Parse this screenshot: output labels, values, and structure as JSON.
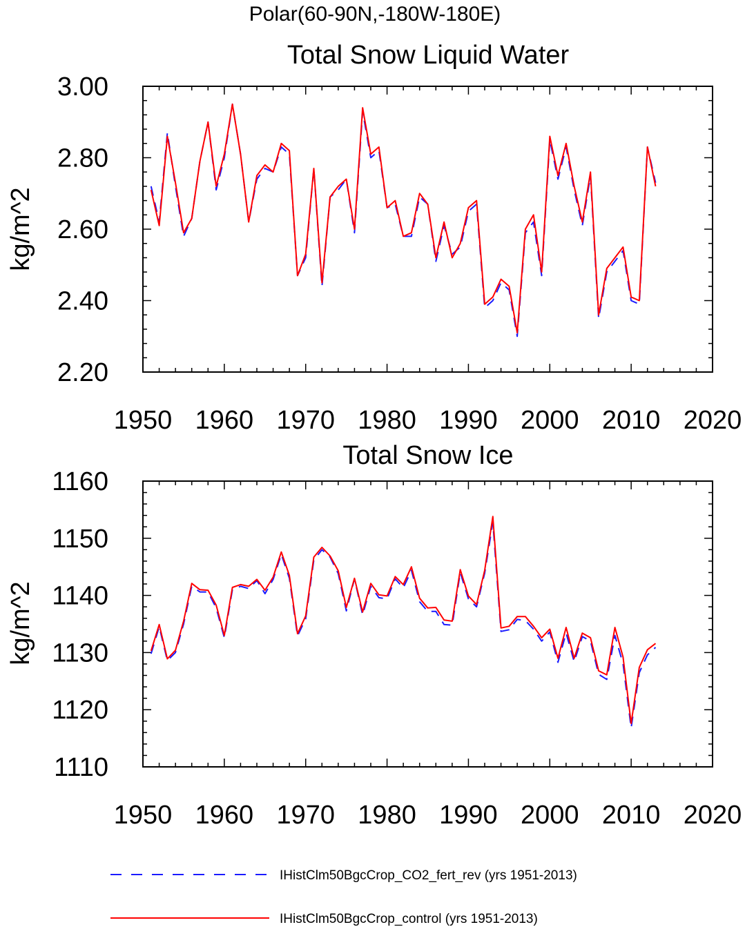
{
  "suptitle": "Polar(60-90N,-180W-180E)",
  "colors": {
    "run1": "#1a1aff",
    "run2": "#ff0000"
  },
  "legend": [
    {
      "label": "IHistClm50BgcCrop_CO2_fert_rev (yrs 1951-2013)",
      "color": "#1a1aff",
      "style": "dashed"
    },
    {
      "label": "IHistClm50BgcCrop_control (yrs 1951-2013)",
      "color": "#ff0000",
      "style": "solid"
    }
  ],
  "chart_data": [
    {
      "type": "line",
      "title": "Total Snow Liquid Water",
      "ylabel": "kg/m^2",
      "xlabel": "",
      "xlim": [
        1950,
        2020
      ],
      "ylim": [
        2.2,
        3.0
      ],
      "xticks": [
        1950,
        1960,
        1970,
        1980,
        1990,
        2000,
        2010,
        2020
      ],
      "yticks": [
        "2.20",
        "2.40",
        "2.60",
        "2.80",
        "3.00"
      ],
      "ytick_values": [
        2.2,
        2.4,
        2.6,
        2.8,
        3.0
      ],
      "x_start": 1951,
      "series": [
        {
          "name": "IHistClm50BgcCrop_CO2_fert_rev",
          "color": "#1a1aff",
          "style": "dashed",
          "values": [
            2.72,
            2.62,
            2.87,
            2.72,
            2.58,
            2.63,
            2.79,
            2.9,
            2.71,
            2.8,
            2.95,
            2.81,
            2.62,
            2.74,
            2.77,
            2.76,
            2.83,
            2.81,
            2.47,
            2.52,
            2.77,
            2.44,
            2.69,
            2.71,
            2.74,
            2.59,
            2.93,
            2.8,
            2.82,
            2.66,
            2.67,
            2.58,
            2.58,
            2.69,
            2.67,
            2.51,
            2.61,
            2.53,
            2.55,
            2.65,
            2.67,
            2.38,
            2.4,
            2.45,
            2.43,
            2.3,
            2.59,
            2.62,
            2.47,
            2.85,
            2.74,
            2.83,
            2.71,
            2.61,
            2.75,
            2.35,
            2.48,
            2.51,
            2.54,
            2.4,
            2.39,
            2.83,
            2.73
          ]
        },
        {
          "name": "IHistClm50BgcCrop_control",
          "color": "#ff0000",
          "style": "solid",
          "values": [
            2.71,
            2.61,
            2.86,
            2.73,
            2.59,
            2.63,
            2.79,
            2.9,
            2.72,
            2.81,
            2.95,
            2.81,
            2.62,
            2.75,
            2.78,
            2.76,
            2.84,
            2.82,
            2.47,
            2.53,
            2.77,
            2.45,
            2.69,
            2.72,
            2.74,
            2.6,
            2.94,
            2.81,
            2.83,
            2.66,
            2.68,
            2.58,
            2.59,
            2.7,
            2.67,
            2.52,
            2.62,
            2.52,
            2.56,
            2.66,
            2.68,
            2.39,
            2.41,
            2.46,
            2.44,
            2.31,
            2.6,
            2.64,
            2.48,
            2.86,
            2.75,
            2.84,
            2.72,
            2.62,
            2.76,
            2.36,
            2.49,
            2.52,
            2.55,
            2.41,
            2.4,
            2.83,
            2.72
          ]
        }
      ]
    },
    {
      "type": "line",
      "title": "Total Snow Ice",
      "ylabel": "kg/m^2",
      "xlabel": "",
      "xlim": [
        1950,
        2020
      ],
      "ylim": [
        1110,
        1160
      ],
      "xticks": [
        1950,
        1960,
        1970,
        1980,
        1990,
        2000,
        2010,
        2020
      ],
      "yticks": [
        "1110",
        "1120",
        "1130",
        "1140",
        "1150",
        "1160"
      ],
      "ytick_values": [
        1110,
        1120,
        1130,
        1140,
        1150,
        1160
      ],
      "x_start": 1951,
      "series": [
        {
          "name": "IHistClm50BgcCrop_CO2_fert_rev",
          "color": "#1a1aff",
          "style": "dashed",
          "values": [
            1129.8,
            1134.5,
            1128.6,
            1130.0,
            1135.0,
            1141.6,
            1140.6,
            1140.6,
            1137.8,
            1132.6,
            1141.0,
            1141.6,
            1141.2,
            1142.6,
            1140.3,
            1142.8,
            1147.2,
            1143.0,
            1132.9,
            1135.9,
            1146.2,
            1148.0,
            1146.7,
            1143.8,
            1137.3,
            1142.9,
            1136.6,
            1141.6,
            1139.6,
            1139.4,
            1142.9,
            1141.3,
            1144.4,
            1138.9,
            1137.2,
            1137.2,
            1134.9,
            1134.8,
            1144.0,
            1139.4,
            1138.0,
            1143.9,
            1152.8,
            1133.7,
            1134.0,
            1135.8,
            1135.6,
            1134.1,
            1132.0,
            1133.6,
            1128.3,
            1133.4,
            1128.4,
            1132.8,
            1132.0,
            1126.2,
            1125.3,
            1133.0,
            1128.0,
            1116.8,
            1126.5,
            1129.6,
            1130.9
          ]
        },
        {
          "name": "IHistClm50BgcCrop_control",
          "color": "#ff0000",
          "style": "solid",
          "values": [
            1130.3,
            1134.9,
            1128.9,
            1130.4,
            1135.5,
            1142.1,
            1141.0,
            1140.9,
            1138.3,
            1133.0,
            1141.4,
            1141.9,
            1141.6,
            1142.8,
            1140.9,
            1143.2,
            1147.6,
            1143.5,
            1133.3,
            1136.4,
            1146.7,
            1148.4,
            1146.9,
            1144.3,
            1137.9,
            1143.0,
            1137.1,
            1142.1,
            1140.1,
            1139.9,
            1143.3,
            1141.9,
            1145.0,
            1139.5,
            1137.8,
            1137.9,
            1135.7,
            1135.5,
            1144.5,
            1139.9,
            1138.4,
            1144.4,
            1153.8,
            1134.3,
            1134.6,
            1136.3,
            1136.3,
            1134.6,
            1132.6,
            1134.1,
            1129.0,
            1134.4,
            1129.0,
            1133.4,
            1132.6,
            1126.8,
            1126.1,
            1134.4,
            1129.2,
            1117.6,
            1127.4,
            1130.5,
            1131.6
          ]
        }
      ]
    }
  ]
}
